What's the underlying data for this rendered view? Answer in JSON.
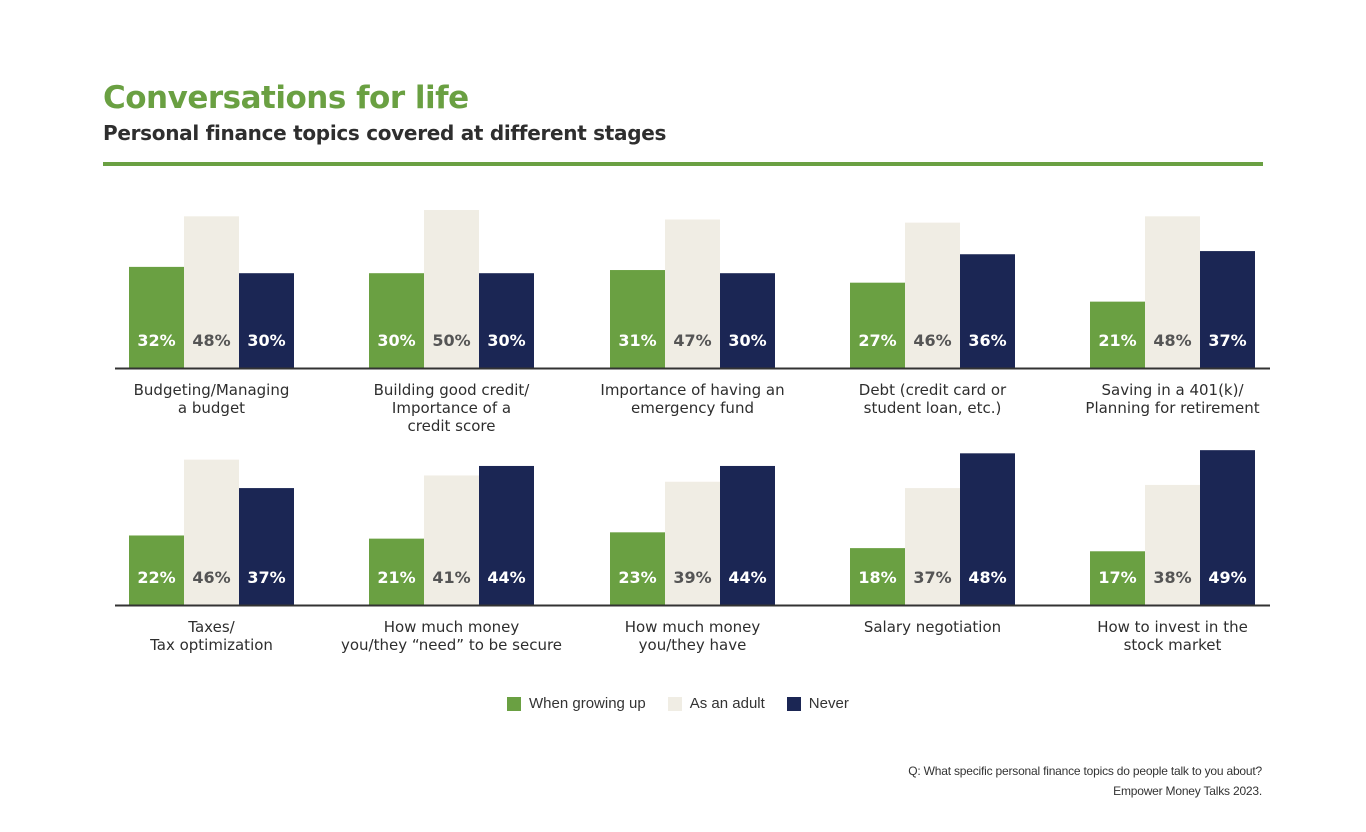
{
  "title": "Conversations for life",
  "subtitle": "Personal finance topics covered at different stages",
  "colors": {
    "accent": "#6aa042",
    "when_growing_up": "#6aa042",
    "as_an_adult": "#f0ede4",
    "never": "#1b2654",
    "axis": "#333333"
  },
  "chart_data": {
    "type": "bar",
    "series_names": [
      "When growing up",
      "As an adult",
      "Never"
    ],
    "panels": [
      {
        "label": [
          "Budgeting/Managing",
          "a budget"
        ],
        "values": [
          32,
          48,
          30
        ]
      },
      {
        "label": [
          "Building good credit/",
          "Importance of a",
          "credit score"
        ],
        "values": [
          30,
          50,
          30
        ]
      },
      {
        "label": [
          "Importance of having an",
          "emergency fund"
        ],
        "values": [
          31,
          47,
          30
        ]
      },
      {
        "label": [
          "Debt (credit card or",
          "student loan, etc.)"
        ],
        "values": [
          27,
          46,
          36
        ]
      },
      {
        "label": [
          "Saving in a 401(k)/",
          "Planning for retirement"
        ],
        "values": [
          21,
          48,
          37
        ]
      },
      {
        "label": [
          "Taxes/",
          "Tax optimization"
        ],
        "values": [
          22,
          46,
          37
        ]
      },
      {
        "label": [
          "How much money",
          "you/they “need” to be secure"
        ],
        "values": [
          21,
          41,
          44
        ]
      },
      {
        "label": [
          "How much money",
          "you/they have"
        ],
        "values": [
          23,
          39,
          44
        ]
      },
      {
        "label": [
          "Salary negotiation"
        ],
        "values": [
          18,
          37,
          48
        ]
      },
      {
        "label": [
          "How to invest in the",
          "stock market"
        ],
        "values": [
          17,
          38,
          49
        ]
      }
    ],
    "value_suffix": "%"
  },
  "legend": {
    "items": [
      {
        "label": "When growing up",
        "color": "#6aa042"
      },
      {
        "label": "As an adult",
        "color": "#f0ede4"
      },
      {
        "label": "Never",
        "color": "#1b2654"
      }
    ]
  },
  "footnote": {
    "line1": "Q: What specific personal finance topics do people talk to you about?",
    "line2": "Empower Money Talks 2023."
  }
}
